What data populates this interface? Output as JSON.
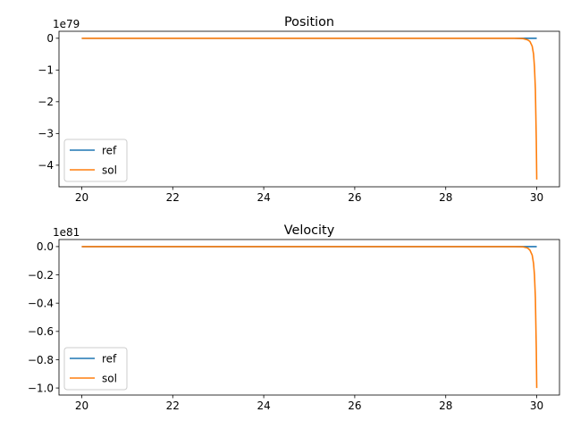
{
  "chart_data": [
    {
      "type": "line",
      "title": "Position",
      "offset_text": "1e79",
      "xlabel": "",
      "ylabel": "",
      "xlim": [
        19.5,
        30.5
      ],
      "ylim": [
        -4.68,
        0.22
      ],
      "x_ticks": [
        20,
        22,
        24,
        26,
        28,
        30
      ],
      "x_tick_labels": [
        "20",
        "22",
        "24",
        "26",
        "28",
        "30"
      ],
      "y_ticks": [
        0,
        -1,
        -2,
        -3,
        -4
      ],
      "y_tick_labels": [
        "0",
        "−1",
        "−2",
        "−3",
        "−4"
      ],
      "legend_position": "lower-left",
      "grid": false,
      "series": [
        {
          "name": "ref",
          "color": "#1f77b4",
          "x": [
            20,
            30
          ],
          "y": [
            0,
            0
          ]
        },
        {
          "name": "sol",
          "color": "#ff7f0e",
          "x": [
            20,
            29.5,
            29.7,
            29.8,
            29.85,
            29.9,
            29.93,
            29.95,
            29.97,
            29.99,
            30.0
          ],
          "y": [
            0,
            -0.001,
            -0.01,
            -0.05,
            -0.1,
            -0.25,
            -0.5,
            -0.9,
            -1.6,
            -3.2,
            -4.45
          ]
        }
      ]
    },
    {
      "type": "line",
      "title": "Velocity",
      "offset_text": "1e81",
      "xlabel": "",
      "ylabel": "",
      "xlim": [
        19.5,
        30.5
      ],
      "ylim": [
        -1.05,
        0.05
      ],
      "x_ticks": [
        20,
        22,
        24,
        26,
        28,
        30
      ],
      "x_tick_labels": [
        "20",
        "22",
        "24",
        "26",
        "28",
        "30"
      ],
      "y_ticks": [
        0.0,
        -0.2,
        -0.4,
        -0.6,
        -0.8,
        -1.0
      ],
      "y_tick_labels": [
        "0.0",
        "−0.2",
        "−0.4",
        "−0.6",
        "−0.8",
        "−1.0"
      ],
      "legend_position": "lower-left",
      "grid": false,
      "series": [
        {
          "name": "ref",
          "color": "#1f77b4",
          "x": [
            20,
            30
          ],
          "y": [
            0,
            0
          ]
        },
        {
          "name": "sol",
          "color": "#ff7f0e",
          "x": [
            20,
            29.5,
            29.7,
            29.8,
            29.85,
            29.9,
            29.93,
            29.95,
            29.97,
            29.99,
            30.0
          ],
          "y": [
            0,
            -0.0002,
            -0.002,
            -0.01,
            -0.025,
            -0.06,
            -0.12,
            -0.2,
            -0.36,
            -0.72,
            -1.0
          ]
        }
      ]
    }
  ]
}
